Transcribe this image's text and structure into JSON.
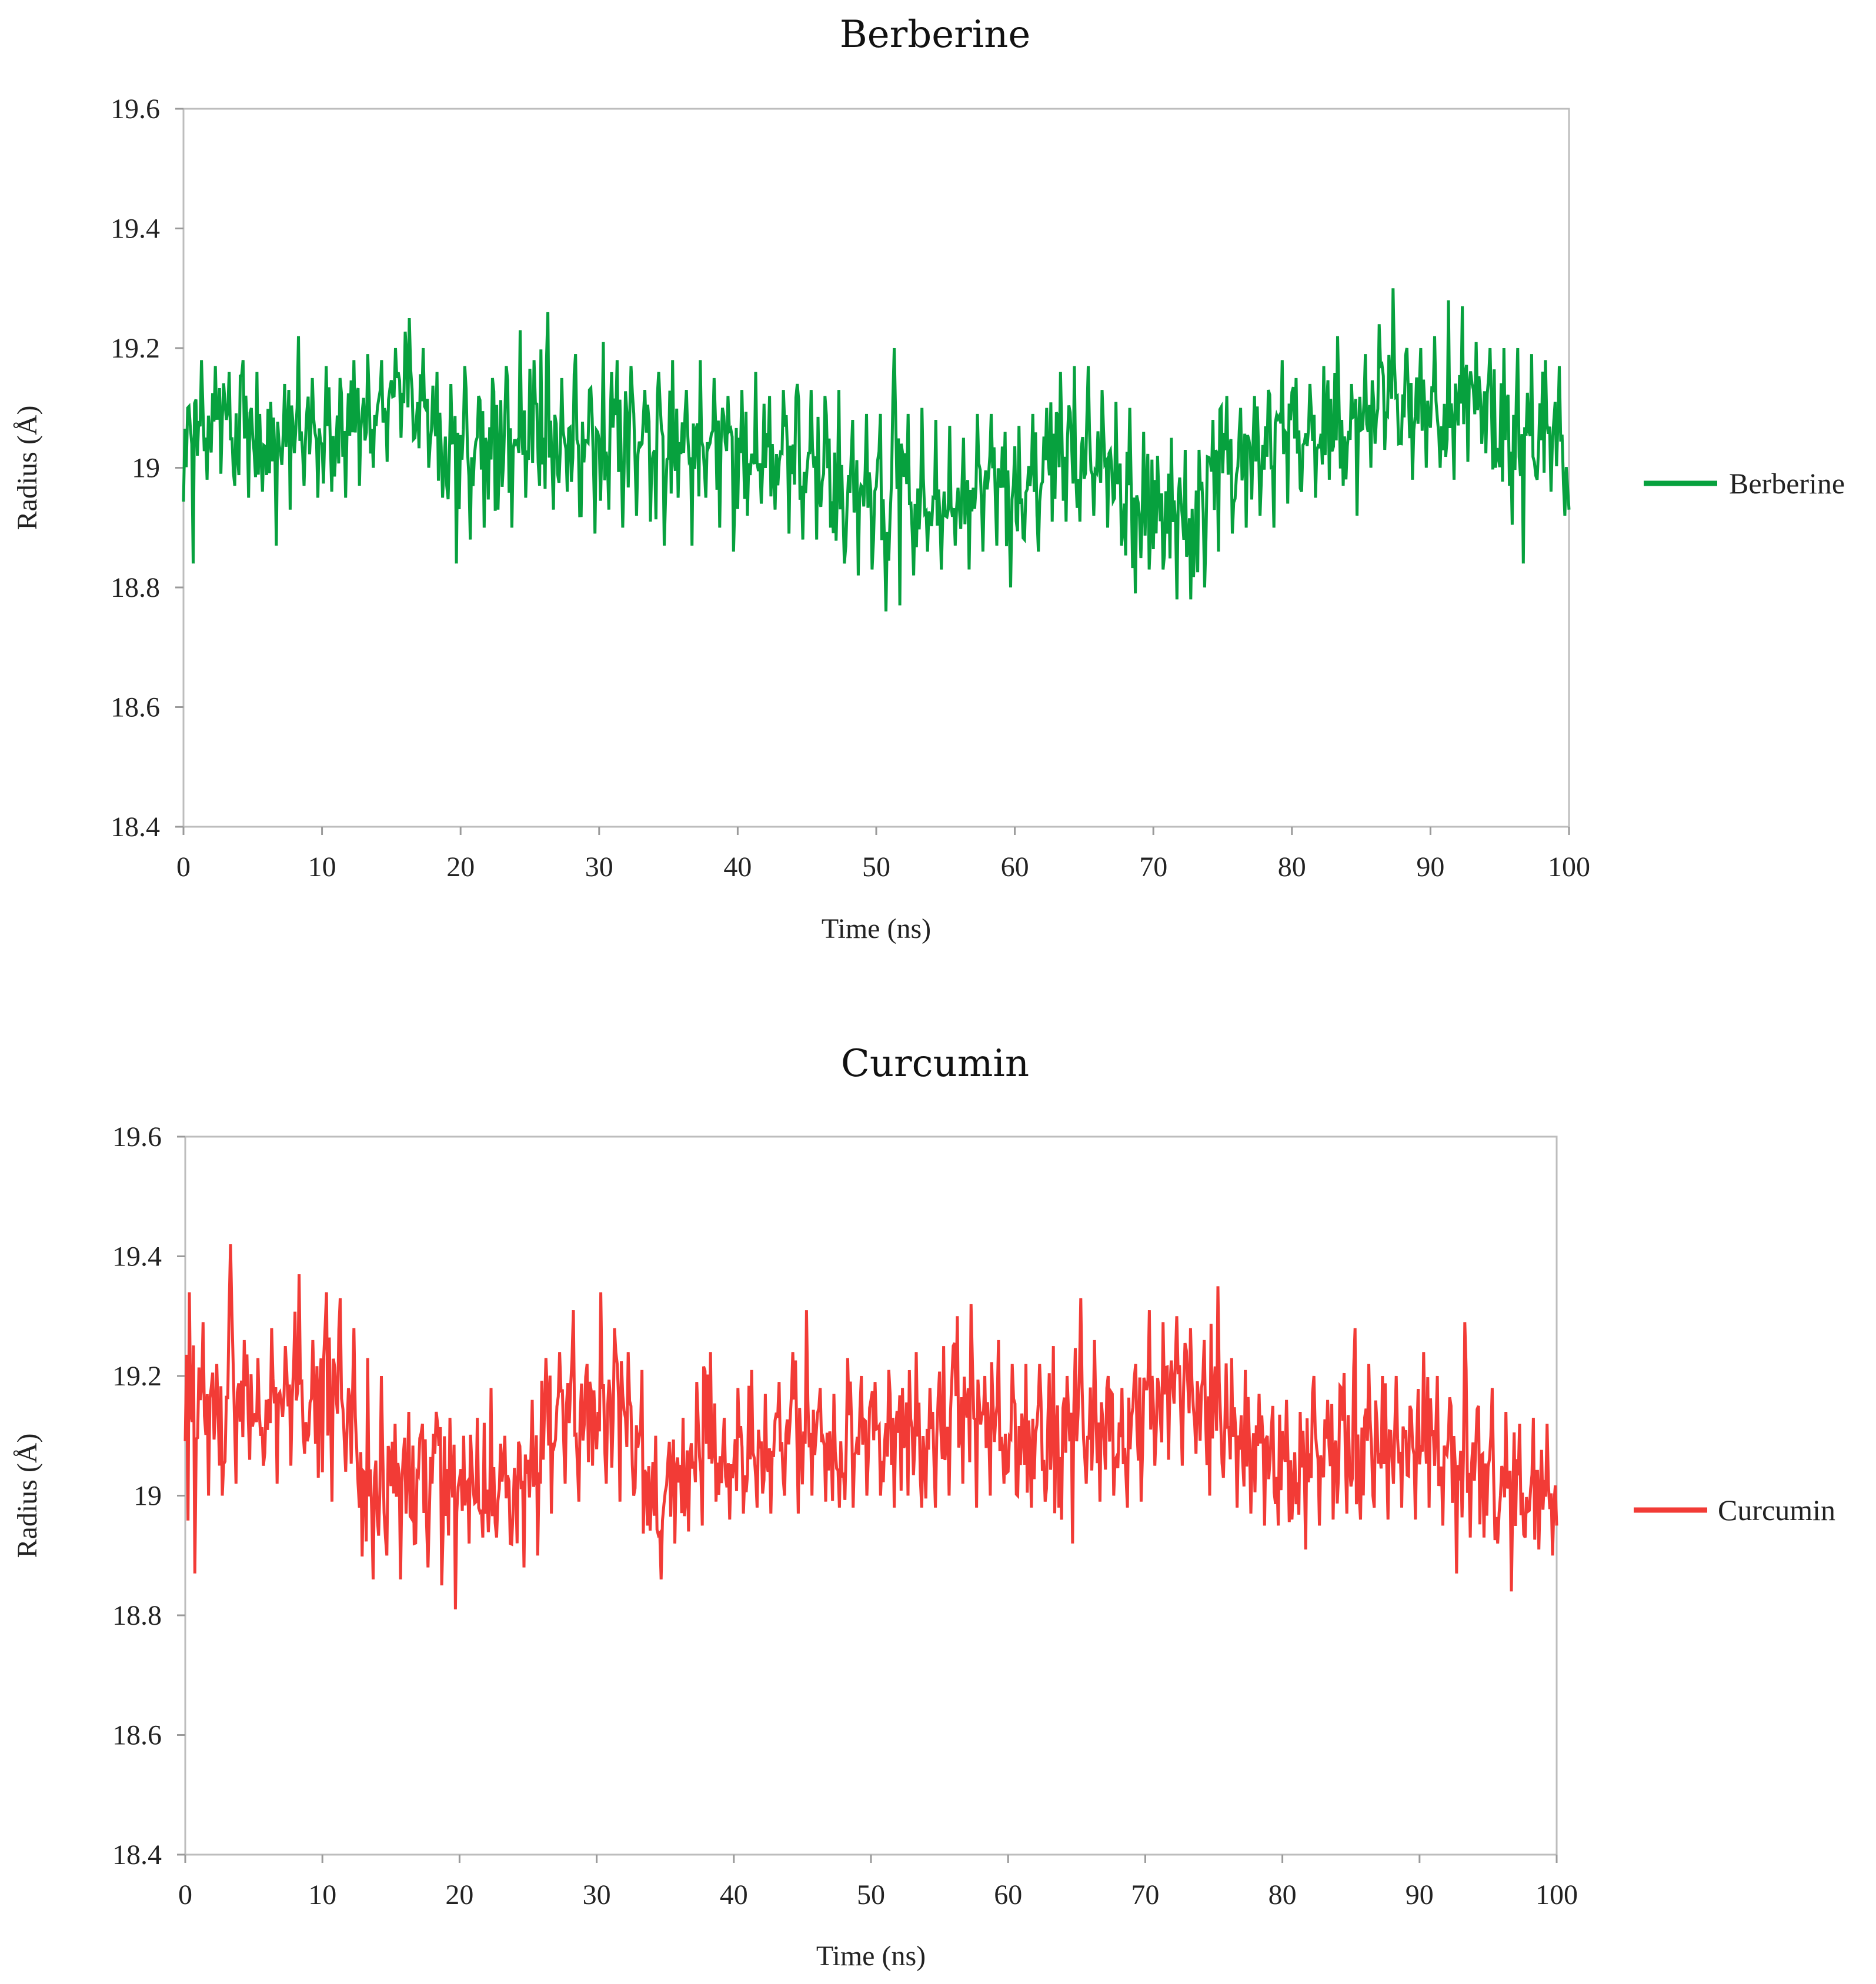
{
  "chart_data": [
    {
      "type": "line",
      "title": "Berberine",
      "xlabel": "Time (ns)",
      "ylabel": "Radius (Å)",
      "xlim": [
        0,
        100
      ],
      "ylim": [
        18.4,
        19.6
      ],
      "xticks": [
        "0",
        "10",
        "20",
        "30",
        "40",
        "50",
        "60",
        "70",
        "80",
        "90",
        "100"
      ],
      "yticks": [
        "18.4",
        "18.6",
        "18.8",
        "19",
        "19.2",
        "19.4",
        "19.6"
      ],
      "grid": false,
      "legend_position": "right",
      "series": [
        {
          "name": "Berberine",
          "color": "#07a13e",
          "x": [
            0,
            1,
            2,
            3,
            4,
            5,
            6,
            7,
            8,
            9,
            10,
            11,
            12,
            13,
            14,
            15,
            16,
            17,
            18,
            19,
            20,
            21,
            22,
            23,
            24,
            25,
            26,
            27,
            28,
            29,
            30,
            31,
            32,
            33,
            34,
            35,
            36,
            37,
            38,
            39,
            40,
            41,
            42,
            43,
            44,
            45,
            46,
            47,
            48,
            49,
            50,
            51,
            52,
            53,
            54,
            55,
            56,
            57,
            58,
            59,
            60,
            61,
            62,
            63,
            64,
            65,
            66,
            67,
            68,
            69,
            70,
            71,
            72,
            73,
            74,
            75,
            76,
            77,
            78,
            79,
            80,
            81,
            82,
            83,
            84,
            85,
            86,
            87,
            88,
            89,
            90,
            91,
            92,
            93,
            94,
            95,
            96,
            97,
            98,
            99,
            100
          ],
          "y": [
            19.0,
            19.08,
            19.06,
            19.07,
            19.05,
            19.07,
            19.03,
            19.04,
            19.06,
            19.06,
            19.05,
            19.05,
            19.07,
            19.08,
            19.1,
            19.12,
            19.15,
            19.11,
            19.08,
            19.06,
            19.03,
            19.02,
            19.05,
            19.02,
            19.07,
            19.06,
            19.05,
            19.06,
            19.04,
            19.03,
            19.05,
            19.02,
            19.05,
            19.04,
            19.03,
            19.04,
            19.02,
            19.05,
            19.03,
            19.01,
            19.02,
            19.03,
            19.04,
            19.02,
            19.01,
            19.0,
            19.03,
            18.99,
            18.98,
            18.96,
            18.95,
            18.97,
            18.98,
            18.96,
            18.95,
            18.93,
            18.94,
            18.96,
            18.97,
            18.94,
            18.95,
            18.96,
            18.98,
            19.0,
            19.01,
            19.02,
            19.02,
            19.0,
            18.95,
            18.93,
            18.92,
            18.9,
            18.9,
            18.92,
            18.97,
            18.99,
            19.0,
            19.02,
            19.03,
            19.05,
            19.04,
            19.05,
            19.06,
            19.07,
            19.05,
            19.1,
            19.12,
            19.14,
            19.08,
            19.11,
            19.1,
            19.08,
            19.1,
            19.12,
            19.1,
            19.08,
            19.07,
            19.08,
            19.06,
            19.05,
            19.0
          ],
          "min_envelope": [
            18.84,
            18.98,
            18.99,
            18.97,
            18.95,
            18.96,
            18.87,
            18.93,
            18.97,
            18.95,
            18.96,
            18.95,
            18.97,
            19.0,
            19.01,
            19.05,
            19.05,
            19.0,
            18.95,
            18.84,
            18.88,
            18.9,
            18.93,
            18.9,
            18.95,
            18.97,
            18.93,
            18.96,
            18.92,
            18.89,
            18.93,
            18.9,
            18.92,
            18.91,
            18.87,
            18.95,
            18.87,
            18.95,
            18.9,
            18.86,
            18.92,
            18.94,
            18.93,
            18.89,
            18.88,
            18.88,
            18.9,
            18.84,
            18.82,
            18.83,
            18.76,
            18.77,
            18.82,
            18.86,
            18.83,
            18.87,
            18.83,
            18.86,
            18.87,
            18.8,
            18.88,
            18.86,
            18.91,
            18.91,
            18.91,
            18.92,
            18.9,
            18.87,
            18.79,
            18.83,
            18.83,
            18.78,
            18.78,
            18.8,
            18.86,
            18.89,
            18.9,
            18.92,
            18.9,
            18.94,
            18.96,
            18.95,
            18.98,
            18.97,
            18.92,
            19.0,
            19.03,
            19.04,
            18.98,
            19.0,
            19.0,
            18.98,
            19.01,
            19.04,
            19.0,
            18.97,
            18.84,
            18.98,
            18.96,
            18.92,
            18.93
          ],
          "max_envelope": [
            19.1,
            19.18,
            19.17,
            19.16,
            19.18,
            19.16,
            19.11,
            19.14,
            19.22,
            19.15,
            19.17,
            19.15,
            19.18,
            19.19,
            19.18,
            19.2,
            19.25,
            19.2,
            19.16,
            19.14,
            19.17,
            19.12,
            19.15,
            19.17,
            19.23,
            19.18,
            19.26,
            19.15,
            19.19,
            19.13,
            19.21,
            19.18,
            19.17,
            19.13,
            19.16,
            19.18,
            19.13,
            19.18,
            19.15,
            19.12,
            19.13,
            19.16,
            19.12,
            19.13,
            19.14,
            19.13,
            19.12,
            19.13,
            19.08,
            19.09,
            19.09,
            19.2,
            19.09,
            19.1,
            19.08,
            19.07,
            19.05,
            19.09,
            19.09,
            19.06,
            19.07,
            19.09,
            19.1,
            19.16,
            19.17,
            19.17,
            19.13,
            19.11,
            19.1,
            19.06,
            19.02,
            19.05,
            19.03,
            19.03,
            19.08,
            19.12,
            19.1,
            19.12,
            19.13,
            19.18,
            19.15,
            19.14,
            19.17,
            19.22,
            19.14,
            19.19,
            19.24,
            19.3,
            19.2,
            19.2,
            19.22,
            19.28,
            19.27,
            19.21,
            19.2,
            19.2,
            19.2,
            19.19,
            19.18,
            19.17,
            19.1
          ]
        }
      ]
    },
    {
      "type": "line",
      "title": "Curcumin",
      "xlabel": "Time (ns)",
      "ylabel": "Radius (Å)",
      "xlim": [
        0,
        100
      ],
      "ylim": [
        18.4,
        19.6
      ],
      "xticks": [
        "0",
        "10",
        "20",
        "30",
        "40",
        "50",
        "60",
        "70",
        "80",
        "90",
        "100"
      ],
      "yticks": [
        "18.4",
        "18.6",
        "18.8",
        "19",
        "19.2",
        "19.4",
        "19.6"
      ],
      "grid": false,
      "legend_position": "right",
      "series": [
        {
          "name": "Curcumin",
          "color": "#f23b36",
          "x": [
            0,
            1,
            2,
            3,
            4,
            5,
            6,
            7,
            8,
            9,
            10,
            11,
            12,
            13,
            14,
            15,
            16,
            17,
            18,
            19,
            20,
            21,
            22,
            23,
            24,
            25,
            26,
            27,
            28,
            29,
            30,
            31,
            32,
            33,
            34,
            35,
            36,
            37,
            38,
            39,
            40,
            41,
            42,
            43,
            44,
            45,
            46,
            47,
            48,
            49,
            50,
            51,
            52,
            53,
            54,
            55,
            56,
            57,
            58,
            59,
            60,
            61,
            62,
            63,
            64,
            65,
            66,
            67,
            68,
            69,
            70,
            71,
            72,
            73,
            74,
            75,
            76,
            77,
            78,
            79,
            80,
            81,
            82,
            83,
            84,
            85,
            86,
            87,
            88,
            89,
            90,
            91,
            92,
            93,
            94,
            95,
            96,
            97,
            98,
            99,
            100
          ],
          "y": [
            19.05,
            19.15,
            19.12,
            19.15,
            19.17,
            19.15,
            19.13,
            19.15,
            19.18,
            19.14,
            19.16,
            19.17,
            19.1,
            19.07,
            19.02,
            19.04,
            19.02,
            19.0,
            19.01,
            18.98,
            19.02,
            19.03,
            19.01,
            19.03,
            19.0,
            19.02,
            19.1,
            19.12,
            19.13,
            19.15,
            19.12,
            19.13,
            19.1,
            19.07,
            18.98,
            19.0,
            19.03,
            19.05,
            19.1,
            19.05,
            19.07,
            19.08,
            19.06,
            19.1,
            19.12,
            19.13,
            19.1,
            19.08,
            19.07,
            19.11,
            19.1,
            19.08,
            19.1,
            19.12,
            19.09,
            19.1,
            19.14,
            19.12,
            19.11,
            19.13,
            19.12,
            19.1,
            19.12,
            19.08,
            19.1,
            19.15,
            19.1,
            19.12,
            19.09,
            19.12,
            19.18,
            19.16,
            19.18,
            19.17,
            19.15,
            19.16,
            19.12,
            19.1,
            19.05,
            19.04,
            19.05,
            19.03,
            19.05,
            19.06,
            19.08,
            19.09,
            19.1,
            19.08,
            19.09,
            19.07,
            19.09,
            19.07,
            19.05,
            19.04,
            19.05,
            19.06,
            19.02,
            19.03,
            19.01,
            19.0,
            19.02
          ],
          "min_envelope": [
            18.87,
            19.0,
            19.0,
            19.02,
            19.06,
            19.05,
            19.02,
            19.05,
            19.07,
            19.03,
            18.99,
            19.04,
            18.98,
            18.86,
            18.9,
            18.86,
            18.92,
            18.88,
            18.85,
            18.81,
            18.92,
            18.93,
            18.93,
            18.92,
            18.88,
            18.9,
            18.97,
            19.02,
            18.99,
            19.05,
            19.02,
            18.99,
            19.0,
            18.95,
            18.86,
            18.92,
            18.94,
            18.95,
            18.99,
            18.96,
            18.97,
            18.98,
            18.97,
            19.0,
            18.97,
            19.0,
            18.99,
            18.98,
            18.98,
            19.0,
            19.0,
            18.98,
            19.0,
            18.98,
            18.98,
            19.0,
            19.02,
            18.98,
            19.0,
            19.02,
            19.0,
            18.98,
            18.99,
            18.98,
            18.92,
            19.02,
            18.99,
            19.0,
            18.98,
            18.99,
            19.05,
            19.06,
            19.05,
            19.07,
            19.0,
            19.03,
            18.98,
            18.97,
            18.95,
            18.95,
            18.96,
            18.91,
            18.95,
            18.96,
            18.97,
            18.96,
            18.98,
            18.96,
            18.98,
            18.96,
            18.98,
            18.95,
            18.87,
            18.93,
            18.93,
            18.92,
            18.84,
            18.93,
            18.91,
            18.9,
            18.95
          ],
          "max_envelope": [
            19.34,
            19.29,
            19.22,
            19.42,
            19.26,
            19.23,
            19.28,
            19.25,
            19.37,
            19.26,
            19.34,
            19.33,
            19.28,
            19.23,
            19.2,
            19.12,
            19.14,
            19.12,
            19.14,
            19.13,
            19.1,
            19.13,
            19.18,
            19.1,
            19.09,
            19.16,
            19.23,
            19.24,
            19.31,
            19.22,
            19.34,
            19.28,
            19.24,
            19.21,
            19.1,
            19.09,
            19.13,
            19.19,
            19.24,
            19.13,
            19.18,
            19.21,
            19.17,
            19.19,
            19.24,
            19.31,
            19.18,
            19.17,
            19.23,
            19.2,
            19.19,
            19.21,
            19.18,
            19.24,
            19.18,
            19.25,
            19.3,
            19.32,
            19.2,
            19.26,
            19.22,
            19.22,
            19.22,
            19.25,
            19.2,
            19.33,
            19.26,
            19.2,
            19.18,
            19.22,
            19.31,
            19.29,
            19.3,
            19.28,
            19.26,
            19.35,
            19.23,
            19.21,
            19.17,
            19.15,
            19.16,
            19.14,
            19.2,
            19.16,
            19.18,
            19.28,
            19.22,
            19.2,
            19.2,
            19.15,
            19.24,
            19.2,
            19.15,
            19.29,
            19.15,
            19.18,
            19.14,
            19.12,
            19.13,
            19.12,
            19.1
          ]
        }
      ]
    }
  ]
}
